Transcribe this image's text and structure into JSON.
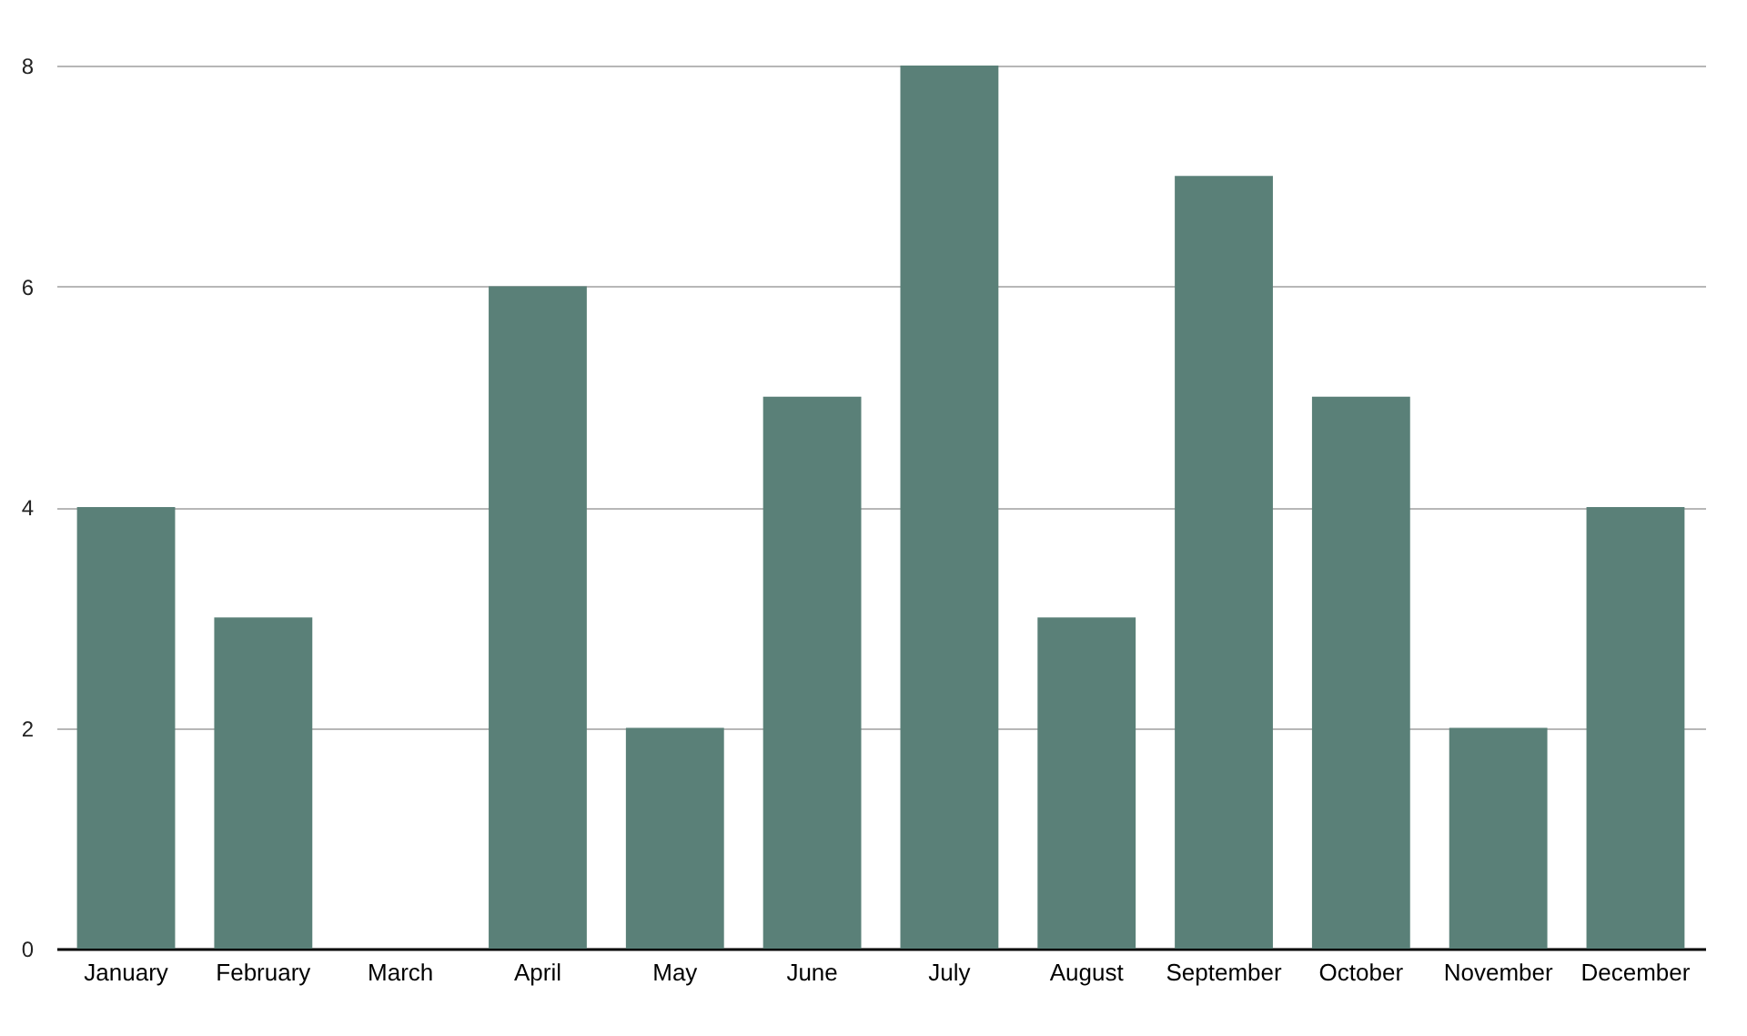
{
  "chart_data": {
    "type": "bar",
    "categories": [
      "January",
      "February",
      "March",
      "April",
      "May",
      "June",
      "July",
      "August",
      "September",
      "October",
      "November",
      "December"
    ],
    "values": [
      4,
      3,
      0,
      6,
      2,
      5,
      8,
      3,
      7,
      5,
      2,
      4
    ],
    "color": "#5a8078",
    "ylim": [
      0,
      8
    ],
    "yticks": [
      0,
      2,
      4,
      6,
      8
    ],
    "grid": "y"
  }
}
